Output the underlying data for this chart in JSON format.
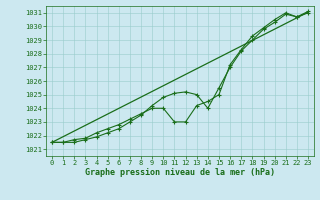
{
  "title": "Graphe pression niveau de la mer (hPa)",
  "bg_color": "#cce8f0",
  "grid_color": "#99cccc",
  "line_color": "#1a6e1a",
  "x_ticks": [
    0,
    1,
    2,
    3,
    4,
    5,
    6,
    7,
    8,
    9,
    10,
    11,
    12,
    13,
    14,
    15,
    16,
    17,
    18,
    19,
    20,
    21,
    22,
    23
  ],
  "y_ticks": [
    1021,
    1022,
    1023,
    1024,
    1025,
    1026,
    1027,
    1028,
    1029,
    1030,
    1031
  ],
  "ylim": [
    1020.5,
    1031.5
  ],
  "xlim": [
    -0.5,
    23.5
  ],
  "series1_x": [
    0,
    1,
    2,
    3,
    4,
    5,
    6,
    7,
    8,
    9,
    10,
    11,
    12,
    13,
    14,
    15,
    16,
    17,
    18,
    19,
    20,
    21,
    22,
    23
  ],
  "series1_y": [
    1021.5,
    1021.5,
    1021.5,
    1021.7,
    1021.9,
    1022.2,
    1022.5,
    1023.0,
    1023.5,
    1024.2,
    1024.8,
    1025.1,
    1025.2,
    1025.0,
    1024.0,
    1025.5,
    1027.0,
    1028.2,
    1029.0,
    1029.8,
    1030.3,
    1030.9,
    1030.7,
    1031.0
  ],
  "series2_x": [
    0,
    1,
    2,
    3,
    4,
    5,
    6,
    7,
    8,
    9,
    10,
    11,
    12,
    13,
    14,
    15,
    16,
    17,
    18,
    19,
    20,
    21,
    22,
    23
  ],
  "series2_y": [
    1021.5,
    1021.5,
    1021.7,
    1021.8,
    1022.2,
    1022.5,
    1022.8,
    1023.2,
    1023.6,
    1024.0,
    1024.0,
    1023.0,
    1023.0,
    1024.2,
    1024.5,
    1025.0,
    1027.2,
    1028.3,
    1029.3,
    1029.9,
    1030.5,
    1031.0,
    1030.7,
    1031.1
  ],
  "trend_x": [
    0,
    23
  ],
  "trend_y": [
    1021.5,
    1031.05
  ],
  "tick_fontsize": 5.0,
  "label_fontsize": 6.0
}
